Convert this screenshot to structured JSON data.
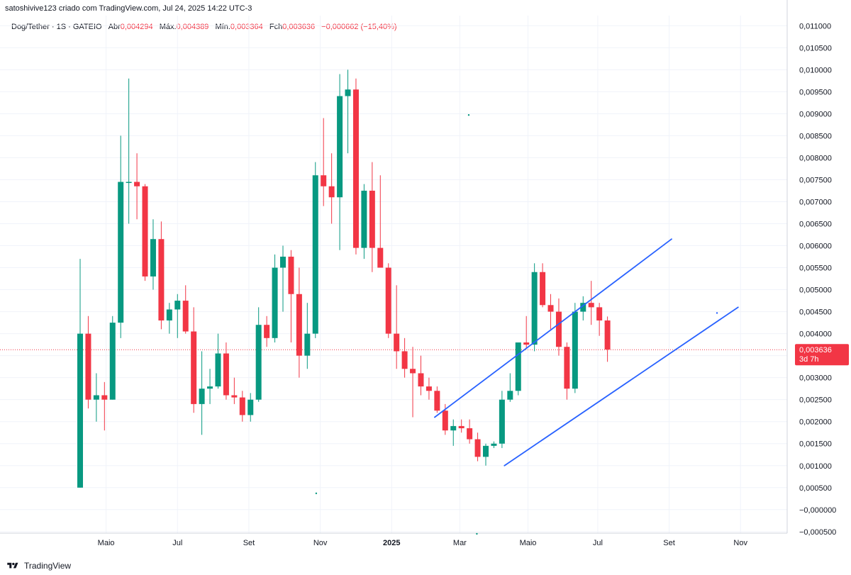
{
  "header": {
    "attribution": "satoshivive123 criado com TradingView.com, Jul 24, 2025 14:22 UTC-3"
  },
  "legend": {
    "symbol": "Dog/Tether · 1S · GATEIO",
    "open_label": "Abr",
    "open": "0,004294",
    "high_label": "Máx.",
    "high": "0,004389",
    "low_label": "Mín.",
    "low": "0,003364",
    "close_label": "Fch",
    "close": "0,003636",
    "change": "−0,000662 (−15,40%)"
  },
  "price_tag": {
    "price": "0,003636",
    "countdown": "3d 7h"
  },
  "footer": {
    "brand": "TradingView"
  },
  "colors": {
    "up": "#089981",
    "down": "#f23645",
    "trendline": "#2962ff",
    "price_line": "#f23645",
    "grid": "#f0f3fa"
  },
  "chart_data": {
    "type": "candlestick",
    "timeframe": "1W",
    "y_ticks": [
      "0,011000",
      "0,010500",
      "0,010000",
      "0,009500",
      "0,009000",
      "0,008500",
      "0,008000",
      "0,007500",
      "0,007000",
      "0,006500",
      "0,006000",
      "0,005500",
      "0,005000",
      "0,004500",
      "0,004000",
      "0,003500",
      "0,003000",
      "0,002500",
      "0,002000",
      "0,001500",
      "0,001000",
      "0,000500",
      "−0,000000",
      "−0,000500"
    ],
    "y_tick_values": [
      0.011,
      0.0105,
      0.01,
      0.0095,
      0.009,
      0.0085,
      0.008,
      0.0075,
      0.007,
      0.0065,
      0.006,
      0.0055,
      0.005,
      0.0045,
      0.004,
      0.0035,
      0.003,
      0.0025,
      0.002,
      0.0015,
      0.001,
      0.0005,
      0.0,
      -0.0005
    ],
    "ylim": [
      -0.000535,
      0.01123
    ],
    "x_labels": [
      {
        "label": "Maio",
        "week": 3.2,
        "bold": false
      },
      {
        "label": "Jul",
        "week": 12.0,
        "bold": false
      },
      {
        "label": "Set",
        "week": 20.8,
        "bold": false
      },
      {
        "label": "Nov",
        "week": 29.6,
        "bold": false
      },
      {
        "label": "2025",
        "week": 38.4,
        "bold": true
      },
      {
        "label": "Mar",
        "week": 46.8,
        "bold": false
      },
      {
        "label": "Maio",
        "week": 55.2,
        "bold": false
      },
      {
        "label": "Jul",
        "week": 63.8,
        "bold": false
      },
      {
        "label": "Set",
        "week": 72.6,
        "bold": false
      },
      {
        "label": "Nov",
        "week": 81.4,
        "bold": false
      }
    ],
    "candles": [
      {
        "o": 0.0005,
        "h": 0.0057,
        "l": 0.0005,
        "c": 0.004
      },
      {
        "o": 0.004,
        "h": 0.0044,
        "l": 0.0023,
        "c": 0.0025
      },
      {
        "o": 0.0025,
        "h": 0.0031,
        "l": 0.002,
        "c": 0.0026
      },
      {
        "o": 0.0026,
        "h": 0.0029,
        "l": 0.0018,
        "c": 0.0025
      },
      {
        "o": 0.0025,
        "h": 0.0044,
        "l": 0.0025,
        "c": 0.00425
      },
      {
        "o": 0.00425,
        "h": 0.0085,
        "l": 0.0039,
        "c": 0.00745
      },
      {
        "o": 0.00745,
        "h": 0.0098,
        "l": 0.0065,
        "c": 0.00745
      },
      {
        "o": 0.00745,
        "h": 0.0081,
        "l": 0.0066,
        "c": 0.00735
      },
      {
        "o": 0.00735,
        "h": 0.0074,
        "l": 0.0052,
        "c": 0.0053
      },
      {
        "o": 0.0053,
        "h": 0.0066,
        "l": 0.005,
        "c": 0.00615
      },
      {
        "o": 0.00615,
        "h": 0.00655,
        "l": 0.0041,
        "c": 0.0043
      },
      {
        "o": 0.0043,
        "h": 0.0047,
        "l": 0.004,
        "c": 0.00455
      },
      {
        "o": 0.00455,
        "h": 0.0049,
        "l": 0.0039,
        "c": 0.00475
      },
      {
        "o": 0.00475,
        "h": 0.0051,
        "l": 0.004,
        "c": 0.00405
      },
      {
        "o": 0.00405,
        "h": 0.0046,
        "l": 0.0022,
        "c": 0.0024
      },
      {
        "o": 0.0024,
        "h": 0.0036,
        "l": 0.0017,
        "c": 0.00275
      },
      {
        "o": 0.00275,
        "h": 0.0032,
        "l": 0.0024,
        "c": 0.0028
      },
      {
        "o": 0.0028,
        "h": 0.004,
        "l": 0.00275,
        "c": 0.00355
      },
      {
        "o": 0.00355,
        "h": 0.0038,
        "l": 0.0025,
        "c": 0.0026
      },
      {
        "o": 0.0026,
        "h": 0.003,
        "l": 0.0024,
        "c": 0.00255
      },
      {
        "o": 0.00255,
        "h": 0.0027,
        "l": 0.002,
        "c": 0.00215
      },
      {
        "o": 0.00215,
        "h": 0.00265,
        "l": 0.002,
        "c": 0.0025
      },
      {
        "o": 0.0025,
        "h": 0.0046,
        "l": 0.00245,
        "c": 0.0042
      },
      {
        "o": 0.0042,
        "h": 0.0044,
        "l": 0.0037,
        "c": 0.0039
      },
      {
        "o": 0.0039,
        "h": 0.0058,
        "l": 0.0038,
        "c": 0.0055
      },
      {
        "o": 0.0055,
        "h": 0.006,
        "l": 0.0045,
        "c": 0.00575
      },
      {
        "o": 0.00575,
        "h": 0.0059,
        "l": 0.0038,
        "c": 0.0049
      },
      {
        "o": 0.0049,
        "h": 0.0055,
        "l": 0.003,
        "c": 0.0035
      },
      {
        "o": 0.0035,
        "h": 0.0047,
        "l": 0.0032,
        "c": 0.004
      },
      {
        "o": 0.004,
        "h": 0.0079,
        "l": 0.0039,
        "c": 0.0076
      },
      {
        "o": 0.0076,
        "h": 0.0089,
        "l": 0.0069,
        "c": 0.00735
      },
      {
        "o": 0.00735,
        "h": 0.0081,
        "l": 0.0065,
        "c": 0.0071
      },
      {
        "o": 0.0071,
        "h": 0.0099,
        "l": 0.0059,
        "c": 0.0094
      },
      {
        "o": 0.0094,
        "h": 0.01,
        "l": 0.0081,
        "c": 0.00955
      },
      {
        "o": 0.00955,
        "h": 0.0098,
        "l": 0.0058,
        "c": 0.00595
      },
      {
        "o": 0.00595,
        "h": 0.0074,
        "l": 0.0057,
        "c": 0.00725
      },
      {
        "o": 0.00725,
        "h": 0.0079,
        "l": 0.0054,
        "c": 0.00595
      },
      {
        "o": 0.00595,
        "h": 0.0076,
        "l": 0.0055,
        "c": 0.0055
      },
      {
        "o": 0.0055,
        "h": 0.0056,
        "l": 0.0039,
        "c": 0.004
      },
      {
        "o": 0.004,
        "h": 0.0051,
        "l": 0.0032,
        "c": 0.0036
      },
      {
        "o": 0.0036,
        "h": 0.0039,
        "l": 0.003,
        "c": 0.0032
      },
      {
        "o": 0.0032,
        "h": 0.0037,
        "l": 0.0021,
        "c": 0.0031
      },
      {
        "o": 0.0031,
        "h": 0.0035,
        "l": 0.0026,
        "c": 0.0028
      },
      {
        "o": 0.0028,
        "h": 0.003,
        "l": 0.0025,
        "c": 0.0027
      },
      {
        "o": 0.0027,
        "h": 0.0028,
        "l": 0.0022,
        "c": 0.00225
      },
      {
        "o": 0.00225,
        "h": 0.0024,
        "l": 0.0017,
        "c": 0.0018
      },
      {
        "o": 0.0018,
        "h": 0.00205,
        "l": 0.00145,
        "c": 0.0019
      },
      {
        "o": 0.0019,
        "h": 0.00205,
        "l": 0.00175,
        "c": 0.00185
      },
      {
        "o": 0.00185,
        "h": 0.00205,
        "l": 0.0015,
        "c": 0.0016
      },
      {
        "o": 0.0016,
        "h": 0.00175,
        "l": 0.0011,
        "c": 0.0012
      },
      {
        "o": 0.0012,
        "h": 0.0015,
        "l": 0.001,
        "c": 0.00145
      },
      {
        "o": 0.00145,
        "h": 0.00155,
        "l": 0.0014,
        "c": 0.0015
      },
      {
        "o": 0.0015,
        "h": 0.0027,
        "l": 0.0014,
        "c": 0.0025
      },
      {
        "o": 0.0025,
        "h": 0.0031,
        "l": 0.00245,
        "c": 0.0027
      },
      {
        "o": 0.0027,
        "h": 0.0038,
        "l": 0.0026,
        "c": 0.0038
      },
      {
        "o": 0.0038,
        "h": 0.0044,
        "l": 0.00365,
        "c": 0.00375
      },
      {
        "o": 0.00375,
        "h": 0.0056,
        "l": 0.0036,
        "c": 0.0054
      },
      {
        "o": 0.0054,
        "h": 0.0056,
        "l": 0.0046,
        "c": 0.00465
      },
      {
        "o": 0.00465,
        "h": 0.0049,
        "l": 0.0041,
        "c": 0.0045
      },
      {
        "o": 0.0045,
        "h": 0.0048,
        "l": 0.0035,
        "c": 0.0037
      },
      {
        "o": 0.0037,
        "h": 0.0038,
        "l": 0.0025,
        "c": 0.00275
      },
      {
        "o": 0.00275,
        "h": 0.0047,
        "l": 0.00265,
        "c": 0.0045
      },
      {
        "o": 0.0045,
        "h": 0.00485,
        "l": 0.0043,
        "c": 0.0047
      },
      {
        "o": 0.0047,
        "h": 0.0052,
        "l": 0.0042,
        "c": 0.0046
      },
      {
        "o": 0.0046,
        "h": 0.0047,
        "l": 0.00395,
        "c": 0.0043
      },
      {
        "o": 0.0043,
        "h": 0.00439,
        "l": 0.00336,
        "c": 0.00364
      }
    ],
    "current_price": 0.003636,
    "trendlines": [
      {
        "name": "channel-upper",
        "from": {
          "week": 43.7,
          "price": 0.0021
        },
        "to": {
          "week": 72.9,
          "price": 0.00615
        }
      },
      {
        "name": "channel-lower",
        "from": {
          "week": 52.3,
          "price": 0.001
        },
        "to": {
          "week": 81.1,
          "price": 0.0046
        }
      }
    ],
    "markers": [
      {
        "week": 47.9,
        "price": 0.00897
      },
      {
        "week": 29.1,
        "price": 0.00037
      },
      {
        "week": 48.9,
        "price": -0.00055
      },
      {
        "week": 78.5,
        "price": 0.00447
      }
    ]
  }
}
